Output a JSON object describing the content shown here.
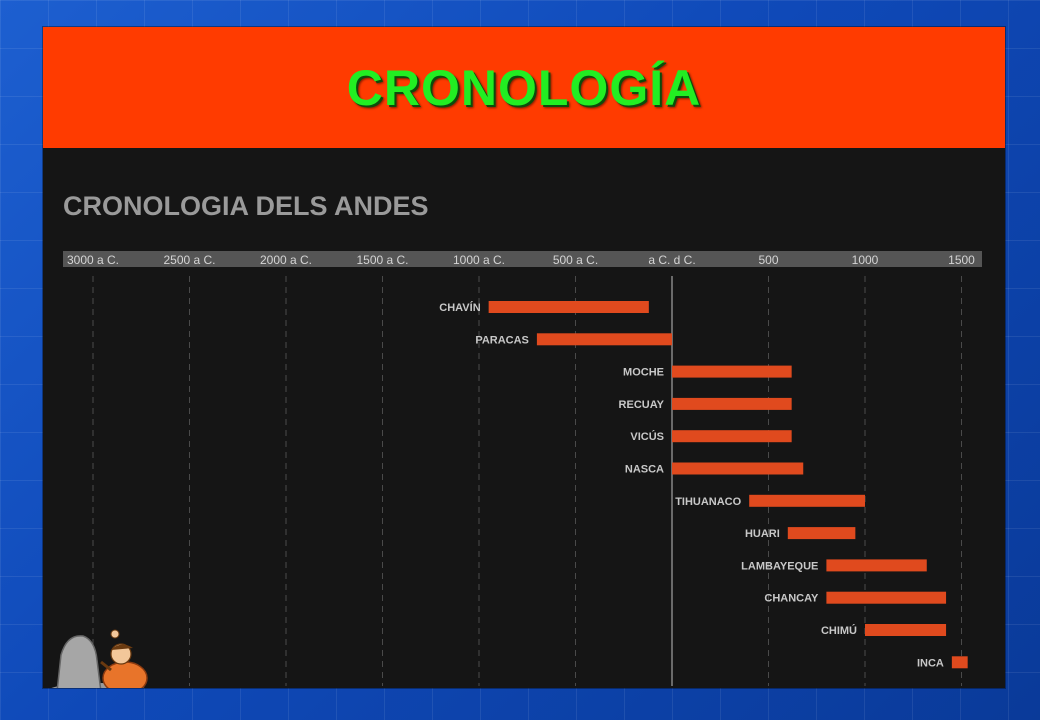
{
  "slide": {
    "title": "CRONOLOGÍA"
  },
  "chart_data": {
    "type": "bar",
    "title": "CRONOLOGIA DELS ANDES",
    "xlabel": "",
    "ylabel": "",
    "x_ticks": [
      {
        "label": "3000 a C.",
        "value": -3000
      },
      {
        "label": "2500 a C.",
        "value": -2500
      },
      {
        "label": "2000 a C.",
        "value": -2000
      },
      {
        "label": "1500 a C.",
        "value": -1500
      },
      {
        "label": "1000 a C.",
        "value": -1000
      },
      {
        "label": "500 a C.",
        "value": -500
      },
      {
        "label": "a C. d C.",
        "value": 0
      },
      {
        "label": "500",
        "value": 500
      },
      {
        "label": "1000",
        "value": 1000
      },
      {
        "label": "1500",
        "value": 1500
      }
    ],
    "xlim": [
      -3000,
      1500
    ],
    "grid": true,
    "categories": [
      "CHAVÍN",
      "PARACAS",
      "MOCHE",
      "RECUAY",
      "VICÚS",
      "NASCA",
      "TIHUANACO",
      "HUARI",
      "LAMBAYEQUE",
      "CHANCAY",
      "CHIMÚ",
      "INCA"
    ],
    "ranges": [
      [
        -950,
        -120
      ],
      [
        -700,
        0
      ],
      [
        0,
        620
      ],
      [
        0,
        620
      ],
      [
        0,
        620
      ],
      [
        0,
        680
      ],
      [
        400,
        1000
      ],
      [
        600,
        950
      ],
      [
        800,
        1320
      ],
      [
        800,
        1420
      ],
      [
        1000,
        1420
      ],
      [
        1450,
        1532
      ]
    ],
    "bar_color": "#e04a1e",
    "accent_color": "#ff3b00"
  }
}
